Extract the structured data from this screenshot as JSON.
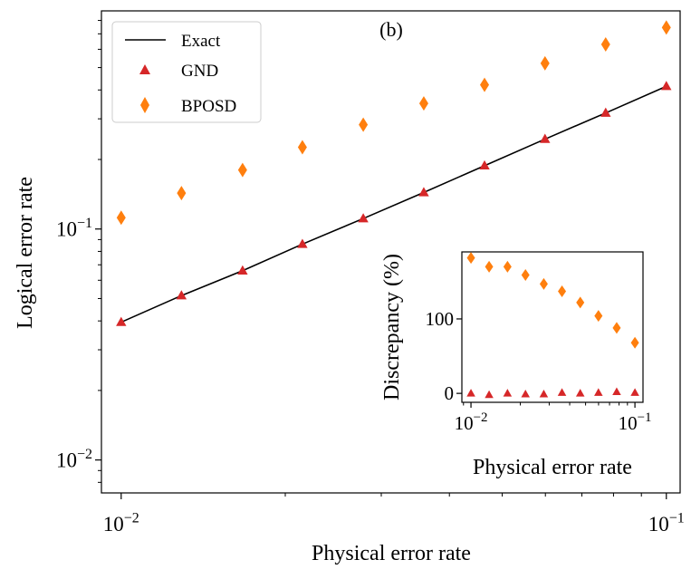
{
  "panel_label": "(b)",
  "colors": {
    "exact": "#000000",
    "gnd": "#d62728",
    "bposd": "#ff7f0e"
  },
  "chart_data": [
    {
      "type": "scatter",
      "xscale": "log",
      "yscale": "log",
      "xlabel": "Physical error rate",
      "ylabel": "Logical error rate",
      "xlim": [
        0.0092,
        0.106
      ],
      "ylim": [
        0.0072,
        0.88
      ],
      "x_ticks": [
        {
          "value": 0.01,
          "base": "10",
          "exp": "−2"
        },
        {
          "value": 0.1,
          "base": "10",
          "exp": "−1"
        }
      ],
      "y_ticks": [
        {
          "value": 0.01,
          "base": "10",
          "exp": "−2"
        },
        {
          "value": 0.1,
          "base": "10",
          "exp": "−1"
        }
      ],
      "legend_position": "top-left",
      "x": [
        0.01,
        0.0129,
        0.0167,
        0.0215,
        0.0278,
        0.0359,
        0.0464,
        0.0599,
        0.0774,
        0.1
      ],
      "series": [
        {
          "name": "Exact",
          "marker": "line",
          "values": [
            0.0395,
            0.0515,
            0.066,
            0.086,
            0.111,
            0.144,
            0.188,
            0.245,
            0.318,
            0.415
          ]
        },
        {
          "name": "GND",
          "marker": "triangle",
          "values": [
            0.0395,
            0.0515,
            0.066,
            0.086,
            0.111,
            0.144,
            0.188,
            0.245,
            0.318,
            0.415
          ]
        },
        {
          "name": "BPOSD",
          "marker": "diamond",
          "values": [
            0.112,
            0.143,
            0.18,
            0.226,
            0.283,
            0.35,
            0.421,
            0.522,
            0.63,
            0.745
          ]
        }
      ]
    },
    {
      "type": "scatter",
      "inset": true,
      "xscale": "log",
      "yscale": "linear",
      "xlabel": "Physical error rate",
      "ylabel": "Discrepancy (%)",
      "xlim": [
        0.0088,
        0.112
      ],
      "ylim": [
        -12,
        190
      ],
      "x_ticks": [
        {
          "value": 0.01,
          "base": "10",
          "exp": "−2"
        },
        {
          "value": 0.1,
          "base": "10",
          "exp": "−1"
        }
      ],
      "y_ticks": [
        {
          "value": 0,
          "label": "0"
        },
        {
          "value": 100,
          "label": "100"
        }
      ],
      "x": [
        0.01,
        0.0129,
        0.0167,
        0.0215,
        0.0278,
        0.0359,
        0.0464,
        0.0599,
        0.0774,
        0.1
      ],
      "series": [
        {
          "name": "GND",
          "marker": "triangle",
          "values": [
            0,
            -2,
            0,
            -1,
            -1,
            1,
            0,
            1,
            2,
            1
          ]
        },
        {
          "name": "BPOSD",
          "marker": "diamond",
          "values": [
            182,
            170,
            170,
            159,
            147,
            137,
            122,
            104,
            88,
            68
          ]
        }
      ]
    }
  ]
}
